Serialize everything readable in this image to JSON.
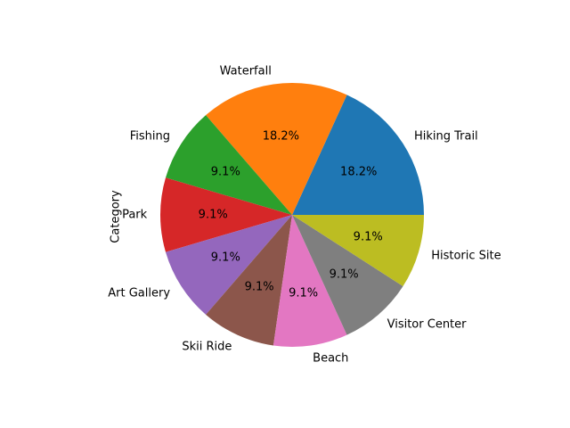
{
  "chart_data": {
    "type": "pie",
    "ylabel": "Category",
    "start_angle_deg": 0,
    "direction": "counterclockwise",
    "slices": [
      {
        "label": "Hiking Trail",
        "value": 2,
        "pct_label": "18.2%",
        "color": "#1f77b4"
      },
      {
        "label": "Waterfall",
        "value": 2,
        "pct_label": "18.2%",
        "color": "#ff7f0e"
      },
      {
        "label": "Fishing",
        "value": 1,
        "pct_label": "9.1%",
        "color": "#2ca02c"
      },
      {
        "label": "Park",
        "value": 1,
        "pct_label": "9.1%",
        "color": "#d62728"
      },
      {
        "label": "Art Gallery",
        "value": 1,
        "pct_label": "9.1%",
        "color": "#9467bd"
      },
      {
        "label": "Skii Ride",
        "value": 1,
        "pct_label": "9.1%",
        "color": "#8c564b"
      },
      {
        "label": "Beach",
        "value": 1,
        "pct_label": "9.1%",
        "color": "#e377c2"
      },
      {
        "label": "Visitor Center",
        "value": 1,
        "pct_label": "9.1%",
        "color": "#7f7f7f"
      },
      {
        "label": "Historic Site",
        "value": 1,
        "pct_label": "9.1%",
        "color": "#bcbd22"
      }
    ]
  }
}
